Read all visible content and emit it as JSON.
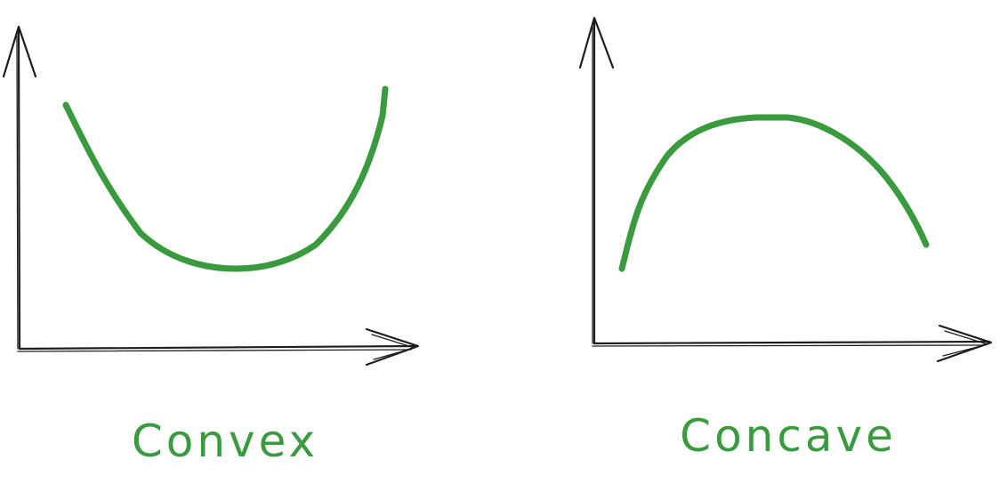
{
  "colors": {
    "curve": "#3a9a3e",
    "axis": "#1e1e1e",
    "background": "#ffffff"
  },
  "diagrams": [
    {
      "id": "convex",
      "label": "Convex"
    },
    {
      "id": "concave",
      "label": "Concave"
    }
  ]
}
